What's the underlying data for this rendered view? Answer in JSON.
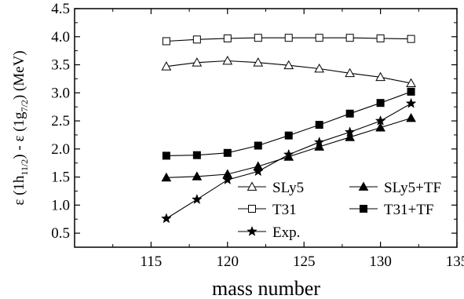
{
  "chart_data": {
    "type": "line",
    "xlabel": "mass number",
    "ylabel": {
      "eps1": "ε (1h",
      "sub1": "11/2",
      "mid": ") - ε (1g",
      "sub2": "7/2",
      "end": ") (MeV)"
    },
    "xlim": [
      110,
      135
    ],
    "ylim": [
      0.25,
      4.5
    ],
    "x_ticks": [
      115,
      120,
      125,
      130,
      135
    ],
    "y_ticks": [
      0.5,
      1.0,
      1.5,
      2.0,
      2.5,
      3.0,
      3.5,
      4.0,
      4.5
    ],
    "x_tick_labels": [
      "115",
      "120",
      "125",
      "130",
      "135"
    ],
    "y_tick_labels": [
      "0.5",
      "1.0",
      "1.5",
      "2.0",
      "2.5",
      "3.0",
      "3.5",
      "4.0",
      "4.5"
    ],
    "grid": false,
    "legend_position": "bottom-right",
    "series": [
      {
        "name": "SLy5",
        "marker": "open-triangle",
        "x": [
          116,
          118,
          120,
          122,
          124,
          126,
          128,
          130,
          132
        ],
        "values": [
          3.47,
          3.54,
          3.57,
          3.54,
          3.49,
          3.43,
          3.35,
          3.28,
          3.17
        ]
      },
      {
        "name": "SLy5+TF",
        "marker": "filled-triangle",
        "x": [
          116,
          118,
          120,
          122,
          124,
          126,
          128,
          130,
          132
        ],
        "values": [
          1.49,
          1.51,
          1.55,
          1.69,
          1.86,
          2.04,
          2.21,
          2.38,
          2.55
        ]
      },
      {
        "name": "T31",
        "marker": "open-square",
        "x": [
          116,
          118,
          120,
          122,
          124,
          126,
          128,
          130,
          132
        ],
        "values": [
          3.92,
          3.95,
          3.97,
          3.98,
          3.98,
          3.98,
          3.98,
          3.97,
          3.96
        ]
      },
      {
        "name": "T31+TF",
        "marker": "filled-square",
        "x": [
          116,
          118,
          120,
          122,
          124,
          126,
          128,
          130,
          132
        ],
        "values": [
          1.88,
          1.89,
          1.93,
          2.06,
          2.24,
          2.43,
          2.63,
          2.82,
          3.02
        ]
      },
      {
        "name": "Exp.",
        "marker": "star",
        "x": [
          116,
          118,
          120,
          122,
          124,
          126,
          128,
          130,
          132
        ],
        "values": [
          0.76,
          1.1,
          1.45,
          1.6,
          1.9,
          2.12,
          2.3,
          2.5,
          2.81
        ]
      }
    ]
  }
}
